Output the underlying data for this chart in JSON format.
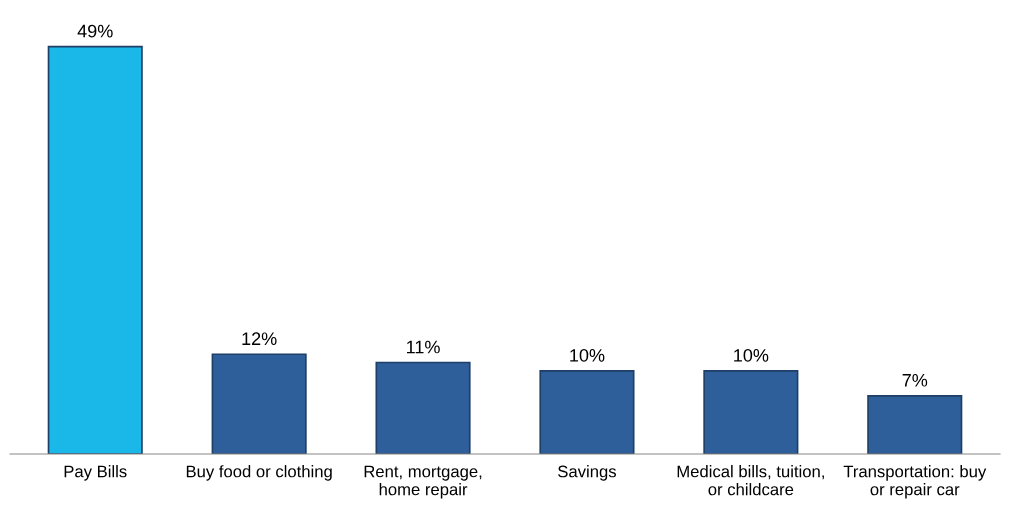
{
  "chart_data": {
    "type": "bar",
    "categories": [
      "Pay Bills",
      "Buy food or clothing",
      "Rent, mortgage,\nhome repair",
      "Savings",
      "Medical bills, tuition,\nor childcare",
      "Transportation: buy\nor repair car"
    ],
    "values": [
      49,
      12,
      11,
      10,
      10,
      7
    ],
    "colors": [
      "#1ab8e8",
      "#2e5f9a",
      "#2e5f9a",
      "#2e5f9a",
      "#2e5f9a",
      "#2e5f9a"
    ],
    "value_labels": [
      "49%",
      "12%",
      "11%",
      "10%",
      "10%",
      "7%"
    ]
  }
}
